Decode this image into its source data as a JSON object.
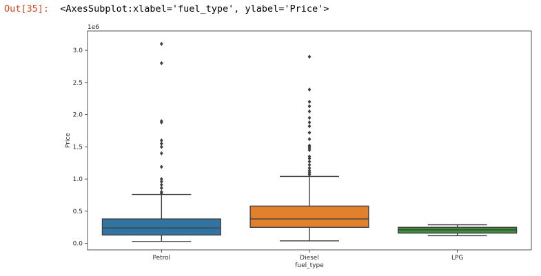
{
  "notebook": {
    "prompt": "Out[35]:",
    "repr": "<AxesSubplot:xlabel='fuel_type', ylabel='Price'>"
  },
  "chart_data": {
    "type": "box",
    "title": "",
    "xlabel": "fuel_type",
    "ylabel": "Price",
    "y_scale_label": "1e6",
    "ylim": [
      -0.1,
      3.3
    ],
    "yticks": [
      0.0,
      0.5,
      1.0,
      1.5,
      2.0,
      2.5,
      3.0
    ],
    "ytick_labels": [
      "0.0",
      "0.5",
      "1.0",
      "1.5",
      "2.0",
      "2.5",
      "3.0"
    ],
    "categories": [
      "Petrol",
      "Diesel",
      "LPG"
    ],
    "boxes": [
      {
        "category": "Petrol",
        "color": "#3274a1",
        "whisker_low": 0.03,
        "q1": 0.13,
        "median": 0.24,
        "q3": 0.38,
        "whisker_high": 0.76,
        "outliers": [
          0.78,
          0.8,
          0.86,
          0.91,
          0.96,
          1.0,
          1.19,
          1.4,
          1.5,
          1.55,
          1.6,
          1.88,
          1.9,
          2.8,
          3.1
        ]
      },
      {
        "category": "Diesel",
        "color": "#e1812c",
        "whisker_low": 0.04,
        "q1": 0.25,
        "median": 0.38,
        "q3": 0.58,
        "whisker_high": 1.04,
        "outliers": [
          1.07,
          1.1,
          1.13,
          1.17,
          1.22,
          1.27,
          1.32,
          1.35,
          1.45,
          1.48,
          1.5,
          1.52,
          1.62,
          1.72,
          1.82,
          1.88,
          1.95,
          2.05,
          2.13,
          2.2,
          2.39,
          2.9
        ]
      },
      {
        "category": "LPG",
        "color": "#3a923a",
        "whisker_low": 0.12,
        "q1": 0.16,
        "median": 0.21,
        "q3": 0.25,
        "whisker_high": 0.29,
        "outliers": []
      }
    ],
    "colors": {
      "box_edge": "#3f3f3f",
      "axis": "#262626",
      "outlier": "#3f3f3f"
    }
  }
}
